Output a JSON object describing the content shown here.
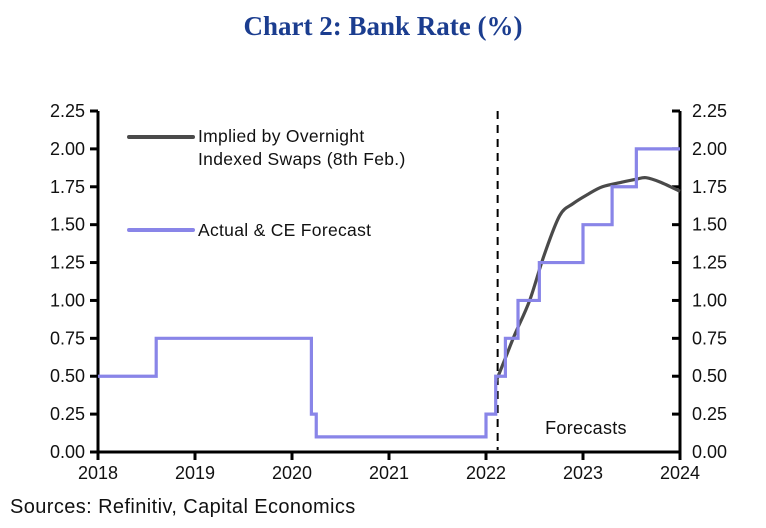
{
  "title": "Chart 2: Bank Rate (%)",
  "source_note": "Sources: Refinitiv, Capital Economics",
  "annotation_label": "Forecasts",
  "legend": {
    "items": [
      {
        "line1": "Implied by Overnight",
        "line2": "Indexed Swaps (8th Feb.)",
        "color": "#4a4a4a"
      },
      {
        "line1": "Actual & CE Forecast",
        "line2": "",
        "color": "#8985e8"
      }
    ]
  },
  "colors": {
    "title": "#1b3d8f",
    "axis": "#000000",
    "ois_line": "#4a4a4a",
    "ce_line": "#8985e8"
  },
  "chart_data": {
    "type": "line",
    "title": "Chart 2: Bank Rate (%)",
    "xlabel": "",
    "ylabel": "",
    "xlim": [
      2018,
      2024
    ],
    "ylim": [
      0,
      2.25
    ],
    "x_ticks": [
      "2018",
      "2019",
      "2020",
      "2021",
      "2022",
      "2023",
      "2024"
    ],
    "y_ticks": [
      "0.00",
      "0.25",
      "0.50",
      "0.75",
      "1.00",
      "1.25",
      "1.50",
      "1.75",
      "2.00",
      "2.25"
    ],
    "dual_y_axis": true,
    "grid": false,
    "forecast_divider_x": 2022.12,
    "annotations": [
      {
        "text": "Forecasts",
        "x": 2023.0,
        "y": 0.13
      }
    ],
    "series": [
      {
        "name": "Implied by Overnight Indexed Swaps (8th Feb.)",
        "color": "#4a4a4a",
        "style": "smooth",
        "points": [
          [
            2022.1,
            0.46
          ],
          [
            2022.2,
            0.62
          ],
          [
            2022.3,
            0.78
          ],
          [
            2022.45,
            1.0
          ],
          [
            2022.6,
            1.3
          ],
          [
            2022.76,
            1.56
          ],
          [
            2022.9,
            1.64
          ],
          [
            2023.05,
            1.7
          ],
          [
            2023.2,
            1.75
          ],
          [
            2023.4,
            1.78
          ],
          [
            2023.55,
            1.8
          ],
          [
            2023.65,
            1.81
          ],
          [
            2023.8,
            1.78
          ],
          [
            2024.0,
            1.72
          ]
        ]
      },
      {
        "name": "Actual & CE Forecast",
        "color": "#8985e8",
        "style": "step",
        "points": [
          [
            2018.0,
            0.5
          ],
          [
            2018.6,
            0.5
          ],
          [
            2018.6,
            0.75
          ],
          [
            2020.2,
            0.75
          ],
          [
            2020.2,
            0.25
          ],
          [
            2020.25,
            0.25
          ],
          [
            2020.25,
            0.1
          ],
          [
            2022.0,
            0.1
          ],
          [
            2022.0,
            0.25
          ],
          [
            2022.1,
            0.25
          ],
          [
            2022.1,
            0.5
          ],
          [
            2022.2,
            0.5
          ],
          [
            2022.2,
            0.75
          ],
          [
            2022.33,
            0.75
          ],
          [
            2022.33,
            1.0
          ],
          [
            2022.55,
            1.0
          ],
          [
            2022.55,
            1.25
          ],
          [
            2023.0,
            1.25
          ],
          [
            2023.0,
            1.5
          ],
          [
            2023.3,
            1.5
          ],
          [
            2023.3,
            1.75
          ],
          [
            2023.55,
            1.75
          ],
          [
            2023.55,
            2.0
          ],
          [
            2024.0,
            2.0
          ]
        ]
      }
    ]
  }
}
